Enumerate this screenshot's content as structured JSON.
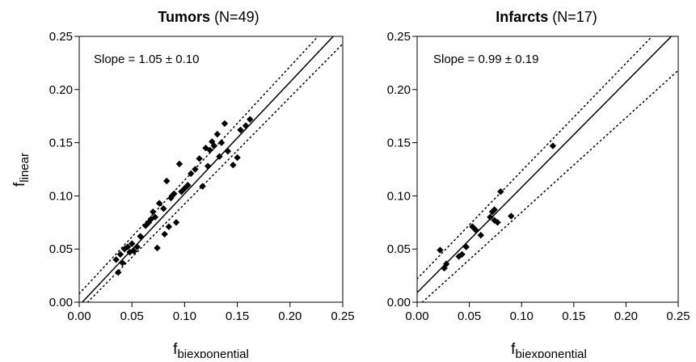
{
  "chart_data": [
    {
      "type": "scatter",
      "title_bold": "Tumors",
      "title_rest": " (N=49)",
      "annotation": "Slope = 1.05 ± 0.10",
      "xlabel_main": "f",
      "xlabel_sub": "biexponential",
      "ylabel_main": "f",
      "ylabel_sub": "linear",
      "xlim": [
        0,
        0.25
      ],
      "ylim": [
        0,
        0.25
      ],
      "x_ticks": [
        "0.00",
        "0.05",
        "0.10",
        "0.15",
        "0.20",
        "0.25"
      ],
      "y_ticks": [
        "0.00",
        "0.05",
        "0.10",
        "0.15",
        "0.20",
        "0.25"
      ],
      "grid": false,
      "fit_line": {
        "slope": 1.05,
        "intercept": -0.003
      },
      "ci_upper": [
        [
          0,
          0.008
        ],
        [
          0.25,
          0.275
        ]
      ],
      "ci_lower": [
        [
          0.008,
          0
        ],
        [
          0.25,
          0.243
        ]
      ],
      "x": [
        0.035,
        0.037,
        0.039,
        0.041,
        0.043,
        0.046,
        0.048,
        0.05,
        0.052,
        0.055,
        0.058,
        0.063,
        0.066,
        0.068,
        0.07,
        0.072,
        0.074,
        0.076,
        0.08,
        0.081,
        0.083,
        0.085,
        0.087,
        0.088,
        0.09,
        0.092,
        0.095,
        0.097,
        0.1,
        0.103,
        0.106,
        0.11,
        0.114,
        0.117,
        0.12,
        0.122,
        0.124,
        0.126,
        0.128,
        0.131,
        0.133,
        0.135,
        0.138,
        0.141,
        0.146,
        0.15,
        0.153,
        0.158,
        0.162
      ],
      "y": [
        0.04,
        0.028,
        0.045,
        0.037,
        0.05,
        0.052,
        0.047,
        0.055,
        0.048,
        0.052,
        0.062,
        0.072,
        0.075,
        0.078,
        0.085,
        0.08,
        0.051,
        0.093,
        0.088,
        0.064,
        0.114,
        0.071,
        0.098,
        0.1,
        0.102,
        0.075,
        0.13,
        0.104,
        0.107,
        0.11,
        0.121,
        0.125,
        0.135,
        0.109,
        0.145,
        0.128,
        0.143,
        0.151,
        0.147,
        0.158,
        0.137,
        0.15,
        0.168,
        0.142,
        0.129,
        0.136,
        0.162,
        0.166,
        0.172
      ]
    },
    {
      "type": "scatter",
      "title_bold": "Infarcts",
      "title_rest": " (N=17)",
      "annotation": "Slope = 0.99 ± 0.19",
      "xlabel_main": "f",
      "xlabel_sub": "biexponential",
      "xlim": [
        0,
        0.25
      ],
      "ylim": [
        0,
        0.25
      ],
      "x_ticks": [
        "0.00",
        "0.05",
        "0.10",
        "0.15",
        "0.20",
        "0.25"
      ],
      "y_ticks": [
        "0.00",
        "0.05",
        "0.10",
        "0.15",
        "0.20",
        "0.25"
      ],
      "grid": false,
      "fit_line": {
        "slope": 0.99,
        "intercept": 0.009
      },
      "ci_upper": [
        [
          0,
          0.022
        ],
        [
          0.225,
          0.25
        ]
      ],
      "ci_lower": [
        [
          0.005,
          0
        ],
        [
          0.25,
          0.218
        ]
      ],
      "x": [
        0.022,
        0.026,
        0.028,
        0.04,
        0.043,
        0.047,
        0.053,
        0.056,
        0.061,
        0.07,
        0.072,
        0.074,
        0.074,
        0.077,
        0.08,
        0.09,
        0.13
      ],
      "y": [
        0.049,
        0.032,
        0.036,
        0.043,
        0.045,
        0.052,
        0.071,
        0.068,
        0.063,
        0.08,
        0.085,
        0.077,
        0.087,
        0.075,
        0.104,
        0.081,
        0.147
      ]
    }
  ]
}
